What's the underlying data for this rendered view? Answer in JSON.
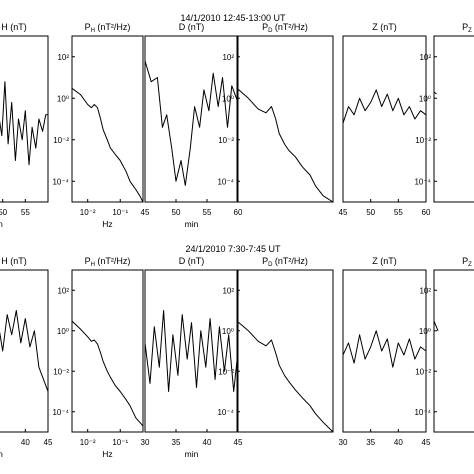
{
  "figure": {
    "rows": [
      {
        "title": "14/1/2010    12:45-13:00 UT"
      },
      {
        "title": "24/1/2010   7:30-7:45 UT"
      }
    ]
  },
  "chart_data": [
    {
      "type": "line",
      "row": 0,
      "col": 0,
      "title": "H (nT)",
      "title_prefix": "",
      "xlabel": "min",
      "xscale": "linear",
      "xlim": [
        45,
        60
      ],
      "xticks": [
        "50",
        "55"
      ],
      "yticks": [],
      "series": [
        {
          "x": [
            45,
            46,
            46.8,
            47.5,
            48.3,
            49,
            49.8,
            50.5,
            51.2,
            52,
            52.8,
            53.5,
            54.3,
            55,
            55.8,
            56.5,
            57.3,
            58,
            58.8,
            59.5,
            60
          ],
          "y": [
            0.1,
            0.35,
            -0.1,
            0.25,
            -0.45,
            0.1,
            -0.2,
            0.45,
            -0.3,
            0.2,
            -0.5,
            0.0,
            -0.25,
            0.1,
            -0.55,
            -0.1,
            -0.35,
            0.0,
            -0.15,
            0.05,
            0.05
          ]
        }
      ],
      "ylim": [
        -1,
        1
      ]
    },
    {
      "type": "line",
      "row": 0,
      "col": 1,
      "title": "(nT²/Hz)",
      "title_prefix": "P",
      "title_sub": "H",
      "xlabel": "Hz",
      "xscale": "log",
      "xlim": [
        0.0033,
        0.5
      ],
      "yscale": "log",
      "ylim": [
        1e-05,
        1000.0
      ],
      "xticks": [
        "10⁻²",
        "10⁻¹"
      ],
      "yticks": [
        "10²",
        "10⁰",
        "10⁻²",
        "10⁻⁴"
      ],
      "series": [
        {
          "x": [
            0.0033,
            0.006,
            0.01,
            0.013,
            0.016,
            0.02,
            0.025,
            0.03,
            0.04,
            0.05,
            0.07,
            0.1,
            0.15,
            0.2,
            0.3,
            0.4,
            0.5
          ],
          "y": [
            3,
            1.5,
            0.5,
            0.35,
            0.5,
            0.35,
            0.1,
            0.03,
            0.01,
            0.004,
            0.002,
            0.001,
            0.0003,
            0.0001,
            4e-05,
            2e-05,
            1e-05
          ]
        }
      ]
    },
    {
      "type": "line",
      "row": 0,
      "col": 2,
      "title": "D (nT)",
      "title_prefix": "",
      "xlabel": "min",
      "xscale": "linear",
      "xlim": [
        45,
        60
      ],
      "xticks": [
        "45",
        "50",
        "55",
        "60"
      ],
      "yticks": [],
      "series": [
        {
          "x": [
            45,
            46,
            47,
            47.8,
            48.5,
            49.3,
            50,
            50.8,
            51.5,
            52.3,
            53,
            53.8,
            54.5,
            55.3,
            56,
            56.8,
            57.5,
            58.3,
            59,
            60
          ],
          "y": [
            0.7,
            0.45,
            0.5,
            -0.1,
            0.05,
            -0.35,
            -0.75,
            -0.5,
            -0.8,
            -0.35,
            0.15,
            -0.1,
            0.35,
            0.1,
            0.55,
            0.15,
            0.5,
            -0.1,
            0.4,
            0.2
          ]
        }
      ],
      "ylim": [
        -1,
        1
      ]
    },
    {
      "type": "line",
      "row": 0,
      "col": 3,
      "title": "(nT²/Hz)",
      "title_prefix": "P",
      "title_sub": "D",
      "xlabel": "",
      "xscale": "log",
      "xlim": [
        0.0033,
        0.5
      ],
      "yscale": "log",
      "ylim": [
        1e-05,
        1000.0
      ],
      "xticks": [],
      "yticks": [
        "10²",
        "10⁰",
        "10⁻²",
        "10⁻⁴"
      ],
      "series": [
        {
          "x": [
            0.0033,
            0.006,
            0.01,
            0.015,
            0.02,
            0.025,
            0.03,
            0.04,
            0.05,
            0.07,
            0.1,
            0.15,
            0.2,
            0.3,
            0.5
          ],
          "y": [
            3,
            1,
            0.3,
            0.2,
            0.4,
            0.1,
            0.02,
            0.006,
            0.003,
            0.0015,
            0.0005,
            0.0002,
            6e-05,
            2e-05,
            1e-05
          ]
        }
      ]
    },
    {
      "type": "line",
      "row": 0,
      "col": 4,
      "title": "Z (nT)",
      "title_prefix": "",
      "xlabel": "",
      "xscale": "linear",
      "xlim": [
        45,
        60
      ],
      "xticks": [
        "45",
        "50",
        "55",
        "60"
      ],
      "yticks": [],
      "series": [
        {
          "x": [
            45,
            46,
            47,
            48,
            49,
            50,
            51,
            52,
            53,
            54,
            55,
            56,
            57,
            58,
            59,
            60
          ],
          "y": [
            -0.05,
            0.15,
            0.05,
            0.25,
            0.1,
            0.2,
            0.35,
            0.15,
            0.3,
            0.1,
            0.25,
            0.05,
            0.15,
            0.0,
            0.1,
            0.05
          ]
        }
      ],
      "ylim": [
        -1,
        1
      ]
    },
    {
      "type": "line",
      "row": 0,
      "col": 5,
      "title": "P",
      "title_prefix": "",
      "title_sub": "Z",
      "xlabel": "",
      "xscale": "log",
      "xlim": [
        0.0033,
        0.5
      ],
      "yscale": "log",
      "ylim": [
        1e-05,
        1000.0
      ],
      "xticks": [],
      "yticks": [
        "10²",
        "10⁰",
        "10⁻²",
        "10⁻⁴"
      ],
      "series": [
        {
          "x": [
            0.0033,
            0.004
          ],
          "y": [
            2,
            1.6
          ]
        }
      ]
    },
    {
      "type": "line",
      "row": 1,
      "col": 0,
      "title": "H (nT)",
      "title_prefix": "",
      "xlabel": "min",
      "xscale": "linear",
      "xlim": [
        30,
        45
      ],
      "xticks": [
        "40",
        "45"
      ],
      "yticks": [],
      "series": [
        {
          "x": [
            30,
            31,
            32,
            33,
            34,
            35,
            36,
            37,
            38,
            39,
            40,
            41,
            42,
            43,
            44,
            45
          ],
          "y": [
            -0.3,
            0.1,
            -0.5,
            -0.1,
            0.35,
            0.0,
            0.45,
            0.2,
            0.5,
            0.1,
            0.4,
            0.05,
            0.25,
            -0.2,
            -0.35,
            -0.5
          ]
        }
      ],
      "ylim": [
        -1,
        1
      ]
    },
    {
      "type": "line",
      "row": 1,
      "col": 1,
      "title": "(nT²/Hz)",
      "title_prefix": "P",
      "title_sub": "H",
      "xlabel": "Hz",
      "xscale": "log",
      "xlim": [
        0.0033,
        0.5
      ],
      "yscale": "log",
      "ylim": [
        1e-05,
        1000.0
      ],
      "xticks": [
        "10⁻²",
        "10⁻¹"
      ],
      "yticks": [
        "10²",
        "10⁰",
        "10⁻²",
        "10⁻⁴"
      ],
      "series": [
        {
          "x": [
            0.0033,
            0.006,
            0.01,
            0.013,
            0.016,
            0.02,
            0.025,
            0.03,
            0.04,
            0.05,
            0.07,
            0.1,
            0.15,
            0.2,
            0.3,
            0.5
          ],
          "y": [
            3,
            1.2,
            0.5,
            0.3,
            0.35,
            0.22,
            0.08,
            0.03,
            0.01,
            0.005,
            0.002,
            0.001,
            0.0004,
            0.0002,
            5e-05,
            2e-05
          ]
        }
      ]
    },
    {
      "type": "line",
      "row": 1,
      "col": 2,
      "title": "D (nT)",
      "title_prefix": "",
      "xlabel": "min",
      "xscale": "linear",
      "xlim": [
        30,
        45
      ],
      "xticks": [
        "30",
        "35",
        "40",
        "45"
      ],
      "yticks": [],
      "series": [
        {
          "x": [
            30,
            30.8,
            31.5,
            32.3,
            33,
            33.8,
            34.5,
            35.3,
            36,
            36.8,
            37.5,
            38.3,
            39,
            39.8,
            40.5,
            41.3,
            42,
            42.8,
            43.5,
            44.3,
            45
          ],
          "y": [
            0.1,
            -0.4,
            0.3,
            -0.2,
            0.5,
            -0.5,
            0.2,
            -0.3,
            0.45,
            -0.1,
            0.35,
            -0.45,
            0.25,
            -0.2,
            0.4,
            -0.35,
            0.3,
            -0.25,
            0.2,
            -0.5,
            0.0
          ]
        }
      ],
      "ylim": [
        -1,
        1
      ]
    },
    {
      "type": "line",
      "row": 1,
      "col": 3,
      "title": "(nT²/Hz)",
      "title_prefix": "P",
      "title_sub": "D",
      "xlabel": "",
      "xscale": "log",
      "xlim": [
        0.0033,
        0.5
      ],
      "yscale": "log",
      "ylim": [
        1e-05,
        1000.0
      ],
      "xticks": [],
      "yticks": [
        "10²",
        "10⁰",
        "10⁻²",
        "10⁻⁴"
      ],
      "series": [
        {
          "x": [
            0.0033,
            0.006,
            0.01,
            0.015,
            0.02,
            0.025,
            0.03,
            0.04,
            0.05,
            0.07,
            0.1,
            0.15,
            0.2,
            0.3,
            0.5
          ],
          "y": [
            3,
            1,
            0.3,
            0.18,
            0.35,
            0.08,
            0.02,
            0.006,
            0.003,
            0.0012,
            0.0005,
            0.0002,
            8e-05,
            3e-05,
            1e-05
          ]
        }
      ]
    },
    {
      "type": "line",
      "row": 1,
      "col": 4,
      "title": "Z (nT)",
      "title_prefix": "",
      "xlabel": "",
      "xscale": "linear",
      "xlim": [
        30,
        45
      ],
      "xticks": [
        "30",
        "35",
        "40",
        "45"
      ],
      "yticks": [],
      "series": [
        {
          "x": [
            30,
            31,
            32,
            33,
            34,
            35,
            36,
            37,
            38,
            39,
            40,
            41,
            42,
            43,
            44,
            45
          ],
          "y": [
            -0.05,
            0.1,
            -0.15,
            0.2,
            -0.1,
            0.05,
            0.25,
            0.0,
            0.15,
            -0.2,
            0.1,
            -0.05,
            0.15,
            -0.1,
            0.05,
            0.0
          ]
        }
      ],
      "ylim": [
        -1,
        1
      ]
    },
    {
      "type": "line",
      "row": 1,
      "col": 5,
      "title": "P",
      "title_prefix": "",
      "title_sub": "Z",
      "xlabel": "",
      "xscale": "log",
      "xlim": [
        0.0033,
        0.5
      ],
      "yscale": "log",
      "ylim": [
        1e-05,
        1000.0
      ],
      "xticks": [],
      "yticks": [
        "10²",
        "10⁰",
        "10⁻²",
        "10⁻⁴"
      ],
      "series": [
        {
          "x": [
            0.0033,
            0.004,
            0.0045
          ],
          "y": [
            3,
            1.5,
            1
          ]
        }
      ]
    }
  ]
}
